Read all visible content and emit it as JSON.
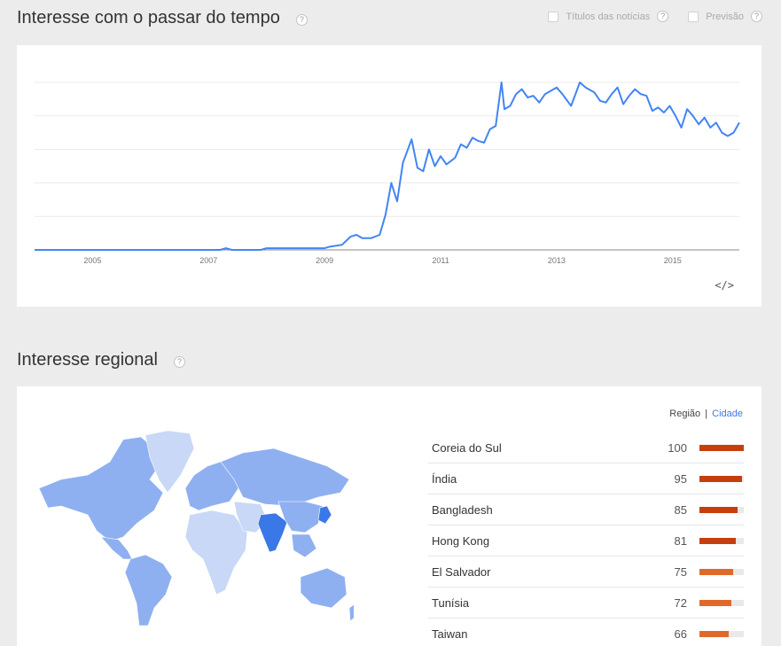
{
  "time_section": {
    "title": "Interesse com o passar do tempo",
    "help": "?",
    "news_headlines_label": "Títulos das notícias",
    "forecast_label": "Previsão",
    "embed_label": "</>"
  },
  "chart_data": {
    "type": "line",
    "x_ticks": [
      "2005",
      "2007",
      "2009",
      "2011",
      "2013",
      "2015"
    ],
    "ylim": [
      0,
      100
    ],
    "grid": true,
    "color": "#4285f4",
    "series": [
      {
        "values": [
          [
            2004.0,
            0
          ],
          [
            2005.0,
            0
          ],
          [
            2006.0,
            0
          ],
          [
            2007.2,
            0
          ],
          [
            2007.3,
            1
          ],
          [
            2007.4,
            0
          ],
          [
            2007.9,
            0
          ],
          [
            2008.0,
            1
          ],
          [
            2008.5,
            1
          ],
          [
            2009.0,
            1
          ],
          [
            2009.1,
            2
          ],
          [
            2009.3,
            3
          ],
          [
            2009.45,
            8
          ],
          [
            2009.55,
            9
          ],
          [
            2009.65,
            7
          ],
          [
            2009.8,
            7
          ],
          [
            2009.95,
            9
          ],
          [
            2010.05,
            21
          ],
          [
            2010.15,
            40
          ],
          [
            2010.25,
            29
          ],
          [
            2010.35,
            52
          ],
          [
            2010.5,
            66
          ],
          [
            2010.6,
            49
          ],
          [
            2010.7,
            47
          ],
          [
            2010.8,
            60
          ],
          [
            2010.9,
            50
          ],
          [
            2011.0,
            56
          ],
          [
            2011.1,
            51
          ],
          [
            2011.25,
            55
          ],
          [
            2011.35,
            63
          ],
          [
            2011.45,
            61
          ],
          [
            2011.55,
            67
          ],
          [
            2011.65,
            65
          ],
          [
            2011.75,
            64
          ],
          [
            2011.85,
            72
          ],
          [
            2011.95,
            74
          ],
          [
            2012.05,
            100
          ],
          [
            2012.1,
            84
          ],
          [
            2012.2,
            86
          ],
          [
            2012.3,
            93
          ],
          [
            2012.4,
            96
          ],
          [
            2012.5,
            91
          ],
          [
            2012.6,
            92
          ],
          [
            2012.7,
            88
          ],
          [
            2012.8,
            93
          ],
          [
            2012.9,
            95
          ],
          [
            2013.0,
            97
          ],
          [
            2013.1,
            93
          ],
          [
            2013.25,
            86
          ],
          [
            2013.4,
            100
          ],
          [
            2013.5,
            97
          ],
          [
            2013.65,
            94
          ],
          [
            2013.75,
            89
          ],
          [
            2013.85,
            88
          ],
          [
            2013.95,
            93
          ],
          [
            2014.05,
            97
          ],
          [
            2014.15,
            87
          ],
          [
            2014.25,
            92
          ],
          [
            2014.35,
            96
          ],
          [
            2014.45,
            93
          ],
          [
            2014.55,
            92
          ],
          [
            2014.65,
            83
          ],
          [
            2014.75,
            85
          ],
          [
            2014.85,
            82
          ],
          [
            2014.95,
            86
          ],
          [
            2015.05,
            80
          ],
          [
            2015.15,
            73
          ],
          [
            2015.25,
            84
          ],
          [
            2015.35,
            80
          ],
          [
            2015.45,
            75
          ],
          [
            2015.55,
            79
          ],
          [
            2015.65,
            73
          ],
          [
            2015.75,
            76
          ],
          [
            2015.85,
            70
          ],
          [
            2015.95,
            68
          ],
          [
            2016.05,
            70
          ],
          [
            2016.15,
            76
          ]
        ]
      }
    ]
  },
  "region_section": {
    "title": "Interesse regional",
    "help": "?",
    "toggle_region": "Região",
    "toggle_sep": "|",
    "toggle_city": "Cidade",
    "rows": [
      {
        "name": "Coreia do Sul",
        "value": "100",
        "fill": 1.0,
        "color": "#c53f0d"
      },
      {
        "name": "Índia",
        "value": "95",
        "fill": 0.95,
        "color": "#c53f0d"
      },
      {
        "name": "Bangladesh",
        "value": "85",
        "fill": 0.85,
        "color": "#c53f0d"
      },
      {
        "name": "Hong Kong",
        "value": "81",
        "fill": 0.81,
        "color": "#c53f0d"
      },
      {
        "name": "El Salvador",
        "value": "75",
        "fill": 0.75,
        "color": "#e0692a"
      },
      {
        "name": "Tunísia",
        "value": "72",
        "fill": 0.72,
        "color": "#e0692a"
      },
      {
        "name": "Taiwan",
        "value": "66",
        "fill": 0.66,
        "color": "#e0692a"
      }
    ]
  },
  "colors": {
    "line": "#4285f4",
    "map_high": "#3b78e7",
    "map_mid": "#8fb0f0",
    "map_low": "#c8d8f6"
  }
}
